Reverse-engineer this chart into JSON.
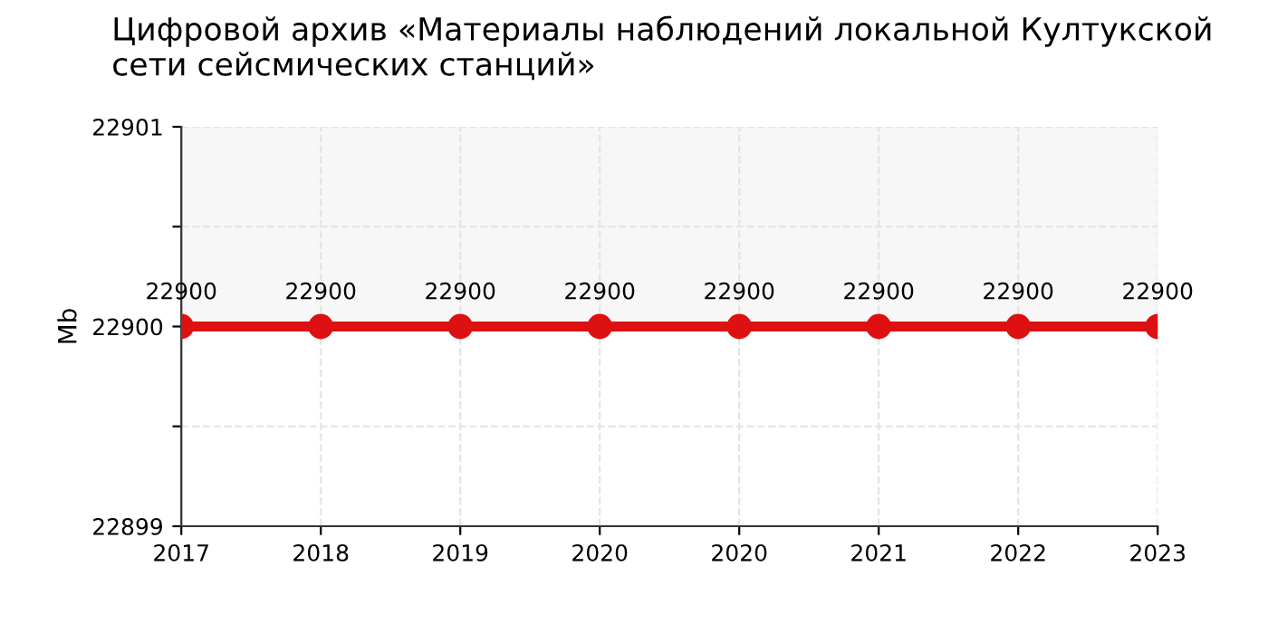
{
  "chart_data": {
    "type": "line",
    "title": "Цифровой архив «Материалы наблюдений локальной Култукской сети сейсмических станций»",
    "ylabel": "Mb",
    "categories": [
      "2017",
      "2018",
      "2019",
      "2020",
      "2020",
      "2021",
      "2022",
      "2023"
    ],
    "series": [
      {
        "color": "#dd1111",
        "values": [
          22900,
          22900,
          22900,
          22900,
          22900,
          22900,
          22900,
          22900
        ]
      }
    ],
    "ylim": [
      22899,
      22901
    ],
    "yticks": [
      22899,
      {
        "value": 22899.5,
        "label": null
      },
      22900,
      {
        "value": 22900.5,
        "label": null
      },
      22901
    ],
    "bands": [
      {
        "axis": "y",
        "from": 22900,
        "to": 22901,
        "color": "#f7f7f7"
      }
    ],
    "data_labels": true,
    "grid": true,
    "marker": "circle",
    "line_style": "solid"
  }
}
